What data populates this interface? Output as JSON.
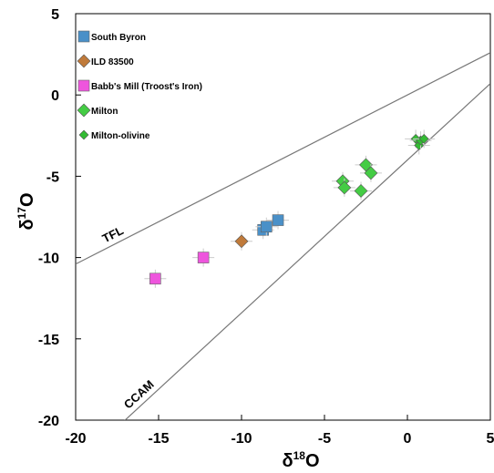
{
  "chart_data": {
    "type": "scatter",
    "xlabel": {
      "base": "δ",
      "sup": "18",
      "tail": "O"
    },
    "ylabel": {
      "base": "δ",
      "sup": "17",
      "tail": "O"
    },
    "xlim": [
      -20,
      5
    ],
    "ylim": [
      -20,
      5
    ],
    "xticks": [
      -20,
      -15,
      -10,
      -5,
      0,
      5
    ],
    "yticks": [
      5,
      0,
      -5,
      -10,
      -15,
      -20
    ],
    "grid": false,
    "legend_position": "top-left",
    "reference_lines": [
      {
        "name": "TFL",
        "slope": 0.52,
        "intercept": 0
      },
      {
        "name": "CCAM",
        "slope": 0.94,
        "intercept": -4
      }
    ],
    "series": [
      {
        "name": "South Byron",
        "marker": "square",
        "color": "#4a90c8",
        "points": [
          [
            -8.7,
            -8.3
          ],
          [
            -8.5,
            -8.1
          ],
          [
            -7.8,
            -7.7
          ]
        ]
      },
      {
        "name": "ILD 83500",
        "marker": "diamond",
        "color": "#c07a3a",
        "points": [
          [
            -10.0,
            -9.0
          ]
        ]
      },
      {
        "name": "Babb's Mill (Troost's Iron)",
        "marker": "square",
        "color": "#ee55dd",
        "points": [
          [
            -15.2,
            -11.3
          ],
          [
            -12.3,
            -10.0
          ]
        ]
      },
      {
        "name": "Milton",
        "marker": "diamond",
        "color": "#44cc44",
        "points": [
          [
            -3.9,
            -5.3
          ],
          [
            -3.8,
            -5.7
          ],
          [
            -2.8,
            -5.9
          ],
          [
            -2.5,
            -4.3
          ],
          [
            -2.2,
            -4.8
          ]
        ]
      },
      {
        "name": "Milton-olivine",
        "marker": "small-diamond",
        "color": "#33bb33",
        "points": [
          [
            0.5,
            -2.7
          ],
          [
            0.7,
            -3.1
          ],
          [
            0.8,
            -2.8
          ],
          [
            1.0,
            -2.7
          ]
        ]
      }
    ]
  }
}
